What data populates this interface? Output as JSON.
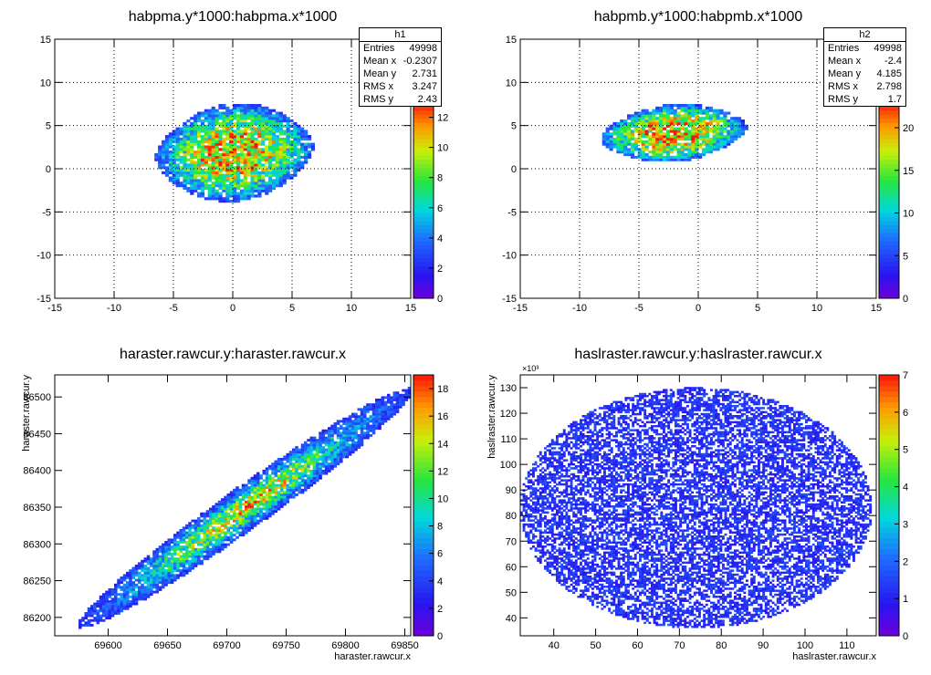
{
  "chart_data": [
    {
      "type": "heatmap",
      "title": "habpma.y*1000:habpma.x*1000",
      "xlabel": "",
      "ylabel": "",
      "xlim": [
        -15,
        15
      ],
      "ylim": [
        -15,
        15
      ],
      "xticks": [
        "-15",
        "-10",
        "-5",
        "0",
        "5",
        "10",
        "15"
      ],
      "yticks": [
        "15",
        "10",
        "5",
        "0",
        "-5",
        "-10",
        "-15"
      ],
      "grid": true,
      "zlim": [
        0,
        13
      ],
      "zticks": [
        "0",
        "2",
        "4",
        "6",
        "8",
        "10",
        "12"
      ],
      "stats": {
        "name": "h1",
        "rows": [
          {
            "label": "Entries",
            "value": "49998"
          },
          {
            "label": "Mean x",
            "value": "-0.2307"
          },
          {
            "label": "Mean y",
            "value": "2.731"
          },
          {
            "label": "RMS x",
            "value": "3.247"
          },
          {
            "label": "RMS y",
            "value": "2.43"
          }
        ]
      },
      "distribution": {
        "shape": "blob",
        "center_x": -0.23,
        "center_y": 2.73,
        "x_range": [
          -6.5,
          6.8
        ],
        "y_range": [
          -3.8,
          7.6
        ],
        "peak_density": 12
      }
    },
    {
      "type": "heatmap",
      "title": "habpmb.y*1000:habpmb.x*1000",
      "xlabel": "",
      "ylabel": "",
      "xlim": [
        -15,
        15
      ],
      "ylim": [
        -15,
        15
      ],
      "xticks": [
        "-15",
        "-10",
        "-5",
        "0",
        "5",
        "10",
        "15"
      ],
      "yticks": [
        "15",
        "10",
        "5",
        "0",
        "-5",
        "-10",
        "-15"
      ],
      "grid": true,
      "zlim": [
        0,
        23
      ],
      "zticks": [
        "0",
        "5",
        "10",
        "15",
        "20"
      ],
      "stats": {
        "name": "h2",
        "rows": [
          {
            "label": "Entries",
            "value": "49998"
          },
          {
            "label": "Mean x",
            "value": "-2.4"
          },
          {
            "label": "Mean y",
            "value": "4.185"
          },
          {
            "label": "RMS x",
            "value": "2.798"
          },
          {
            "label": "RMS y",
            "value": "1.7"
          }
        ]
      },
      "distribution": {
        "shape": "blob",
        "center_x": -2.4,
        "center_y": 4.19,
        "x_range": [
          -8.2,
          4.1
        ],
        "y_range": [
          0.8,
          7.5
        ],
        "peak_density": 22
      }
    },
    {
      "type": "heatmap",
      "title": "haraster.rawcur.y:haraster.rawcur.x",
      "xlabel": "haraster.rawcur.x",
      "ylabel": "haraster.rawcur.y",
      "xlim": [
        69555,
        69855
      ],
      "ylim": [
        86175,
        86530
      ],
      "xticks": [
        "69600",
        "69650",
        "69700",
        "69750",
        "69800",
        "69850"
      ],
      "yticks": [
        "86500",
        "86450",
        "86400",
        "86350",
        "86300",
        "86250",
        "86200"
      ],
      "grid": false,
      "zlim": [
        0,
        19
      ],
      "zticks": [
        "0",
        "2",
        "4",
        "6",
        "8",
        "10",
        "12",
        "14",
        "16",
        "18"
      ],
      "distribution": {
        "shape": "correlated-band",
        "x_range": [
          69570,
          69850
        ],
        "y_range": [
          86180,
          86505
        ],
        "peak_density": 16
      }
    },
    {
      "type": "heatmap",
      "title": "haslraster.rawcur.y:haslraster.rawcur.x",
      "xlabel": "haslraster.rawcur.x",
      "ylabel": "haslraster.rawcur.y",
      "ylabel_exponent": "×10³",
      "xlim": [
        32,
        117
      ],
      "ylim": [
        33,
        135
      ],
      "xticks": [
        "40",
        "50",
        "60",
        "70",
        "80",
        "90",
        "100",
        "110"
      ],
      "yticks": [
        "130",
        "120",
        "110",
        "100",
        "90",
        "80",
        "70",
        "60",
        "50",
        "40"
      ],
      "grid": false,
      "zlim": [
        0,
        7
      ],
      "zticks": [
        "0",
        "1",
        "2",
        "3",
        "4",
        "5",
        "6",
        "7"
      ],
      "distribution": {
        "shape": "uniform-ellipse",
        "center_x": 74,
        "center_y": 83,
        "x_range": [
          32,
          116
        ],
        "y_range": [
          36,
          130
        ],
        "peak_density": 4
      }
    }
  ]
}
